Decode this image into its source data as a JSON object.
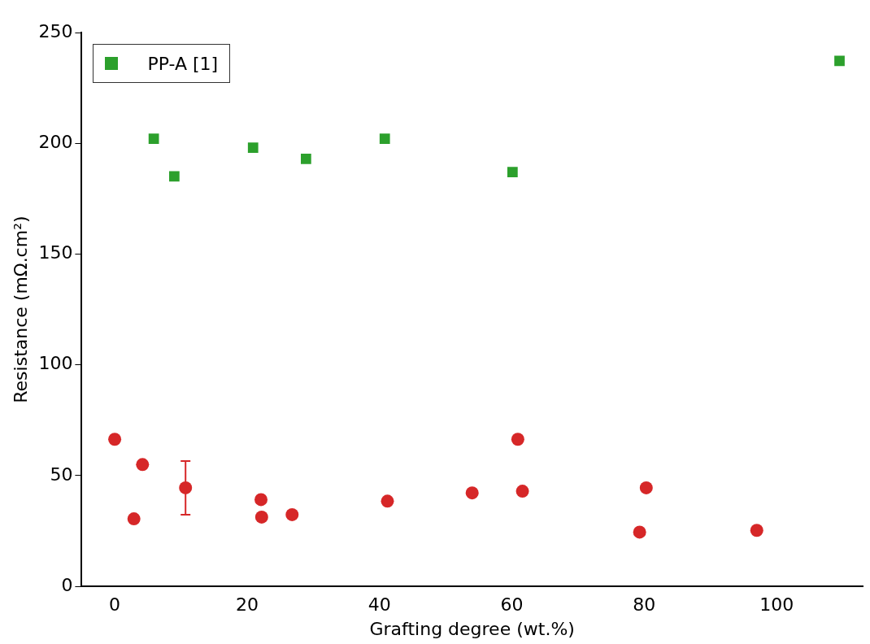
{
  "chart_data": {
    "type": "scatter",
    "xlabel": "Grafting degree (wt.%)",
    "ylabel": "Resistance (mΩ.cm²)",
    "xlim": [
      -5,
      113
    ],
    "ylim": [
      0,
      250
    ],
    "xticks": [
      0,
      20,
      40,
      60,
      80,
      100
    ],
    "yticks": [
      0,
      50,
      100,
      150,
      200,
      250
    ],
    "grid": false,
    "legend": "top left",
    "series": [
      {
        "color": "#d62728",
        "marker": "circle",
        "x": [
          0,
          2.9,
          4.2,
          10.7,
          22.1,
          22.2,
          26.8,
          41.2,
          54,
          60.9,
          61.6,
          79.3,
          80.3,
          97
        ],
        "values": [
          66.4,
          30.5,
          55,
          44.5,
          39.2,
          31.3,
          32.4,
          38.5,
          42.2,
          66.4,
          43,
          24.5,
          44.5,
          25.3
        ],
        "errors": [
          null,
          null,
          null,
          [
            32.4,
            56.6
          ],
          null,
          null,
          null,
          null,
          null,
          null,
          null,
          null,
          null,
          null
        ]
      },
      {
        "name": "PP-A [1]",
        "color": "#2ca02c",
        "marker": "square",
        "x": [
          5.9,
          9,
          20.9,
          28.9,
          40.8,
          60.1,
          109.5
        ],
        "values": [
          202.1,
          185.1,
          198,
          193,
          202.1,
          187,
          237.2
        ]
      }
    ]
  }
}
